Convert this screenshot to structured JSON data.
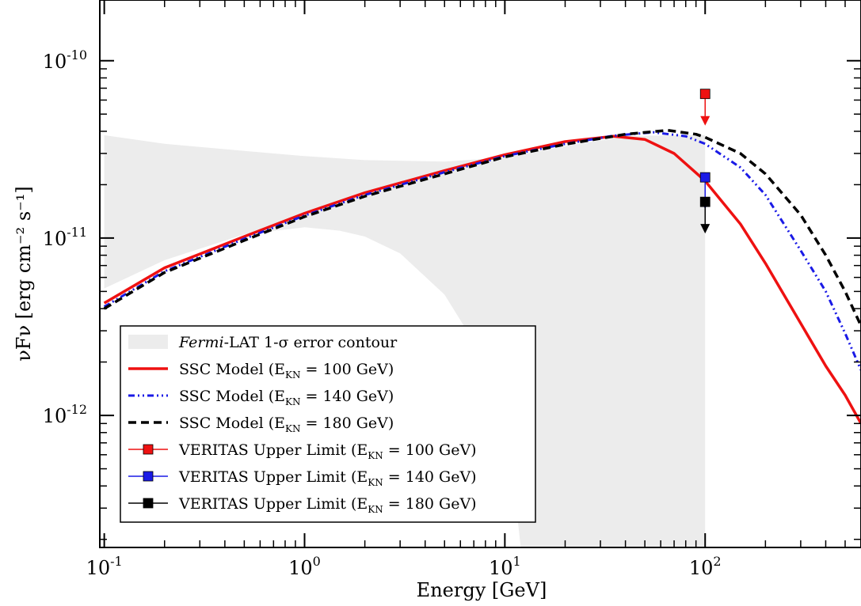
{
  "chart_data": {
    "type": "line",
    "title": "",
    "xlabel": "Energy [GeV]",
    "ylabel": "νFν [erg cm⁻² s⁻¹]",
    "xscale": "log",
    "yscale": "log",
    "xlim": [
      0.095,
      600
    ],
    "ylim": [
      1.8e-13,
      2.2e-10
    ],
    "x_ticks": [
      {
        "value": 0.1,
        "base": "10",
        "exp": "-1"
      },
      {
        "value": 1,
        "base": "10",
        "exp": "0"
      },
      {
        "value": 10,
        "base": "10",
        "exp": "1"
      },
      {
        "value": 100,
        "base": "10",
        "exp": "2"
      }
    ],
    "y_ticks": [
      {
        "value": 1e-10,
        "base": "10",
        "exp": "-10"
      },
      {
        "value": 1e-11,
        "base": "10",
        "exp": "-11"
      },
      {
        "value": 1e-12,
        "base": "10",
        "exp": "-12"
      }
    ],
    "grid": false,
    "legend_position": "lower-left",
    "error_contour": {
      "name": "Fermi-LAT 1-σ error contour",
      "name_italic": "Fermi",
      "name_rest": "-LAT 1-σ error contour",
      "color": "#ececec",
      "upper": [
        [
          0.1,
          3.8e-11
        ],
        [
          0.2,
          3.4e-11
        ],
        [
          0.5,
          3.1e-11
        ],
        [
          1,
          2.9e-11
        ],
        [
          2,
          2.75e-11
        ],
        [
          5,
          2.7e-11
        ],
        [
          10,
          2.85e-11
        ],
        [
          20,
          3.3e-11
        ],
        [
          40,
          3.75e-11
        ],
        [
          70,
          3.8e-11
        ],
        [
          100,
          3.8e-11
        ]
      ],
      "lower": [
        [
          0.1,
          5.2e-12
        ],
        [
          0.2,
          7.5e-12
        ],
        [
          0.5,
          1.05e-11
        ],
        [
          1,
          1.15e-11
        ],
        [
          1.5,
          1.1e-11
        ],
        [
          2,
          1.02e-11
        ],
        [
          3,
          8.2e-12
        ],
        [
          5,
          4.8e-12
        ],
        [
          7,
          2.6e-12
        ],
        [
          10,
          1.2e-12
        ],
        [
          12,
          1.8e-13
        ]
      ]
    },
    "series": [
      {
        "name": "SSC Model (E",
        "sub": "KN",
        "name_end": " = 100 GeV)",
        "color": "#ee1111",
        "dash": "",
        "width": 3.5,
        "points": [
          [
            0.1,
            4.3e-12
          ],
          [
            0.2,
            6.8e-12
          ],
          [
            0.5,
            1.02e-11
          ],
          [
            1,
            1.38e-11
          ],
          [
            2,
            1.8e-11
          ],
          [
            5,
            2.4e-11
          ],
          [
            10,
            2.95e-11
          ],
          [
            20,
            3.5e-11
          ],
          [
            35,
            3.75e-11
          ],
          [
            50,
            3.6e-11
          ],
          [
            70,
            3e-11
          ],
          [
            100,
            2.1e-11
          ],
          [
            150,
            1.2e-11
          ],
          [
            200,
            7.2e-12
          ],
          [
            300,
            3.3e-12
          ],
          [
            400,
            1.9e-12
          ],
          [
            500,
            1.3e-12
          ],
          [
            600,
            9e-13
          ]
        ]
      },
      {
        "name": "SSC Model (E",
        "sub": "KN",
        "name_end": " = 140 GeV)",
        "color": "#1a1ae6",
        "dash": "8,4,2,4,2,4",
        "width": 3,
        "points": [
          [
            0.1,
            4.1e-12
          ],
          [
            0.2,
            6.5e-12
          ],
          [
            0.5,
            9.9e-12
          ],
          [
            1,
            1.34e-11
          ],
          [
            2,
            1.75e-11
          ],
          [
            5,
            2.35e-11
          ],
          [
            10,
            2.9e-11
          ],
          [
            20,
            3.4e-11
          ],
          [
            35,
            3.78e-11
          ],
          [
            55,
            3.95e-11
          ],
          [
            80,
            3.75e-11
          ],
          [
            100,
            3.4e-11
          ],
          [
            150,
            2.5e-11
          ],
          [
            200,
            1.75e-11
          ],
          [
            300,
            8.5e-12
          ],
          [
            400,
            5e-12
          ],
          [
            500,
            2.9e-12
          ],
          [
            600,
            1.8e-12
          ]
        ]
      },
      {
        "name": "SSC Model (E",
        "sub": "KN",
        "name_end": " = 180 GeV)",
        "color": "#000000",
        "dash": "10,6",
        "width": 3.5,
        "points": [
          [
            0.1,
            4e-12
          ],
          [
            0.2,
            6.4e-12
          ],
          [
            0.5,
            9.7e-12
          ],
          [
            1,
            1.32e-11
          ],
          [
            2,
            1.72e-11
          ],
          [
            5,
            2.3e-11
          ],
          [
            10,
            2.87e-11
          ],
          [
            20,
            3.38e-11
          ],
          [
            40,
            3.85e-11
          ],
          [
            65,
            4.05e-11
          ],
          [
            90,
            3.85e-11
          ],
          [
            100,
            3.7e-11
          ],
          [
            150,
            3e-11
          ],
          [
            200,
            2.3e-11
          ],
          [
            300,
            1.35e-11
          ],
          [
            400,
            8e-12
          ],
          [
            500,
            5e-12
          ],
          [
            600,
            3.2e-12
          ]
        ]
      }
    ],
    "upper_limits": [
      {
        "name": "VERITAS Upper Limit (E",
        "sub": "KN",
        "name_end": " = 100 GeV)",
        "color": "#ee1111",
        "x": 100,
        "y": 6.5e-11
      },
      {
        "name": "VERITAS Upper Limit (E",
        "sub": "KN",
        "name_end": " = 140 GeV)",
        "color": "#1a1ae6",
        "x": 100,
        "y": 2.2e-11
      },
      {
        "name": "VERITAS Upper Limit (E",
        "sub": "KN",
        "name_end": " = 180 GeV)",
        "color": "#000000",
        "x": 100,
        "y": 1.6e-11
      }
    ]
  }
}
